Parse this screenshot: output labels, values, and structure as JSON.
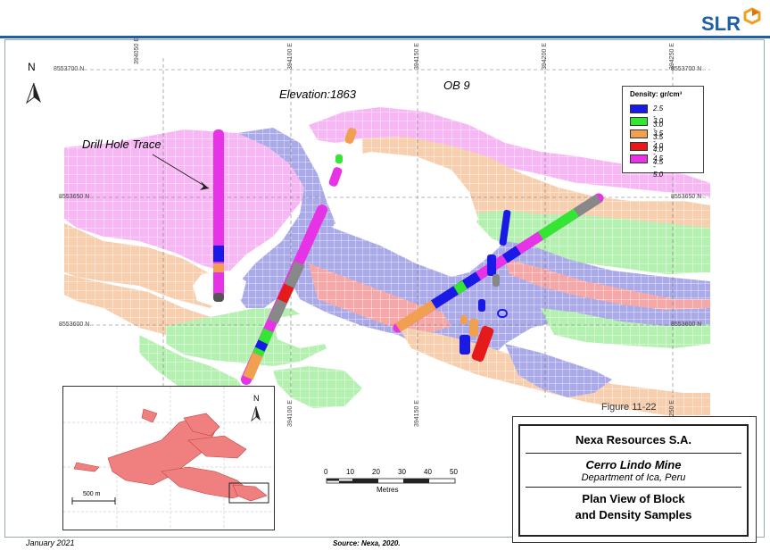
{
  "header": {
    "logo_text": "SLR"
  },
  "map": {
    "north_label": "N",
    "elevation_label": "Elevation:1863",
    "ore_body_label": "OB 9",
    "drill_hole_label": "Drill Hole Trace",
    "grid_northings": [
      "8553700 N",
      "8553650 N",
      "8553600 N"
    ],
    "grid_eastings": [
      "394050 E",
      "394100 E",
      "394150 E",
      "394200 E",
      "394250 E"
    ]
  },
  "legend": {
    "title": "Density: gr/cm³",
    "items": [
      {
        "label": "2.5 - 3.0",
        "color": "#1a1ae6"
      },
      {
        "label": "3.0 - 3.5",
        "color": "#33e633"
      },
      {
        "label": "3.5 - 4.0",
        "color": "#f0a050"
      },
      {
        "label": "4.0 - 4.5",
        "color": "#e61a1a"
      },
      {
        "label": "4.5 - 5.0",
        "color": "#e633e6"
      }
    ]
  },
  "inset": {
    "north_label": "N",
    "scale_label": "500 m"
  },
  "scale_bar": {
    "ticks": [
      "0",
      "10",
      "20",
      "30",
      "40",
      "50"
    ],
    "unit": "Metres"
  },
  "figure": {
    "number": "Figure 11-22",
    "company": "Nexa Resources S.A.",
    "mine": "Cerro Lindo Mine",
    "location": "Department of Ica, Peru",
    "title_line1": "Plan View of Block",
    "title_line2": "and Density Samples"
  },
  "footer": {
    "date": "January 2021",
    "source": "Source: Nexa, 2020."
  }
}
